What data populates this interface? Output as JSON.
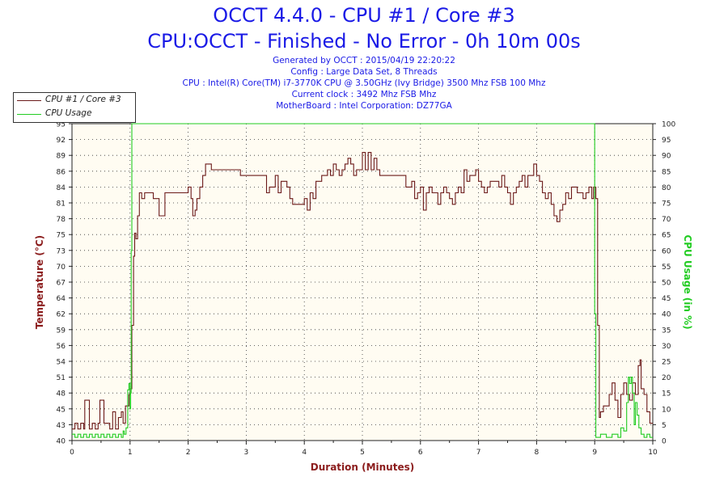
{
  "header": {
    "title1": "OCCT 4.4.0 - CPU #1 / Core #3",
    "title2": "CPU:OCCT - Finished - No Error - 0h 10m 00s",
    "info_lines": [
      "Generated by OCCT : 2015/04/19 22:20:22",
      "Config : Large Data Set, 8 Threads",
      "CPU : Intel(R) Core(TM) i7-3770K CPU @ 3.50GHz (Ivy Bridge) 3500 Mhz FSB 100 Mhz",
      "Current clock : 3492 Mhz FSB  Mhz",
      "MotherBoard : Intel Corporation: DZ77GA"
    ]
  },
  "legend": {
    "items": [
      {
        "label": "CPU #1 / Core #3",
        "color": "#6b1a1a"
      },
      {
        "label": "CPU Usage",
        "color": "#22cc22"
      }
    ]
  },
  "chart_data": {
    "type": "line",
    "title": "OCCT 4.4.0 - CPU #1 / Core #3",
    "xlabel": "Duration (Minutes)",
    "ylabel_left": "Temperature (°C)",
    "ylabel_right": "CPU Usage (in %)",
    "xlim": [
      0,
      10
    ],
    "ylim_left": [
      40,
      95
    ],
    "ylim_right": [
      0,
      100
    ],
    "x_ticks": [
      "0",
      "1",
      "2",
      "3",
      "4",
      "5",
      "6",
      "7",
      "8",
      "9",
      "10"
    ],
    "y_left_ticks": [
      "40",
      "43",
      "45",
      "48",
      "51",
      "54",
      "56",
      "59",
      "62",
      "64",
      "67",
      "70",
      "73",
      "75",
      "78",
      "81",
      "84",
      "86",
      "89",
      "92",
      "95"
    ],
    "y_right_ticks": [
      "0",
      "5",
      "10",
      "15",
      "20",
      "25",
      "30",
      "35",
      "40",
      "45",
      "50",
      "55",
      "60",
      "65",
      "70",
      "75",
      "80",
      "85",
      "90",
      "95",
      "100"
    ],
    "grid": true,
    "legend_position": "top-left",
    "background": "#fffcf2",
    "series": [
      {
        "name": "CPU #1 / Core #3",
        "color": "#6b1a1a",
        "axis": "left",
        "points": [
          [
            0.0,
            42
          ],
          [
            0.05,
            43
          ],
          [
            0.1,
            42
          ],
          [
            0.15,
            43
          ],
          [
            0.2,
            42
          ],
          [
            0.22,
            47
          ],
          [
            0.28,
            47
          ],
          [
            0.3,
            42
          ],
          [
            0.35,
            43
          ],
          [
            0.4,
            42
          ],
          [
            0.45,
            43
          ],
          [
            0.48,
            47
          ],
          [
            0.53,
            47
          ],
          [
            0.55,
            43
          ],
          [
            0.6,
            43
          ],
          [
            0.65,
            42
          ],
          [
            0.7,
            45
          ],
          [
            0.75,
            42
          ],
          [
            0.8,
            44
          ],
          [
            0.85,
            45
          ],
          [
            0.88,
            43
          ],
          [
            0.92,
            46
          ],
          [
            0.96,
            46
          ],
          [
            0.98,
            48
          ],
          [
            1.0,
            49
          ],
          [
            1.03,
            60
          ],
          [
            1.06,
            72
          ],
          [
            1.08,
            76
          ],
          [
            1.1,
            75
          ],
          [
            1.13,
            79
          ],
          [
            1.16,
            83
          ],
          [
            1.2,
            82
          ],
          [
            1.25,
            83
          ],
          [
            1.3,
            83
          ],
          [
            1.35,
            83
          ],
          [
            1.4,
            82
          ],
          [
            1.45,
            82
          ],
          [
            1.5,
            79
          ],
          [
            1.55,
            79
          ],
          [
            1.6,
            83
          ],
          [
            1.7,
            83
          ],
          [
            1.8,
            83
          ],
          [
            1.9,
            83
          ],
          [
            2.0,
            84
          ],
          [
            2.05,
            82
          ],
          [
            2.08,
            79
          ],
          [
            2.12,
            80
          ],
          [
            2.15,
            82
          ],
          [
            2.2,
            84
          ],
          [
            2.25,
            86
          ],
          [
            2.3,
            88
          ],
          [
            2.4,
            87
          ],
          [
            2.5,
            87
          ],
          [
            2.6,
            87
          ],
          [
            2.7,
            87
          ],
          [
            2.8,
            87
          ],
          [
            2.9,
            86
          ],
          [
            3.0,
            86
          ],
          [
            3.1,
            86
          ],
          [
            3.2,
            86
          ],
          [
            3.3,
            86
          ],
          [
            3.35,
            83
          ],
          [
            3.4,
            84
          ],
          [
            3.5,
            86
          ],
          [
            3.55,
            83
          ],
          [
            3.6,
            85
          ],
          [
            3.7,
            84
          ],
          [
            3.75,
            82
          ],
          [
            3.8,
            81
          ],
          [
            3.9,
            81
          ],
          [
            3.95,
            81
          ],
          [
            4.0,
            82
          ],
          [
            4.05,
            80
          ],
          [
            4.1,
            83
          ],
          [
            4.15,
            82
          ],
          [
            4.2,
            85
          ],
          [
            4.3,
            86
          ],
          [
            4.4,
            87
          ],
          [
            4.45,
            86
          ],
          [
            4.5,
            88
          ],
          [
            4.55,
            87
          ],
          [
            4.6,
            86
          ],
          [
            4.65,
            87
          ],
          [
            4.7,
            88
          ],
          [
            4.75,
            89
          ],
          [
            4.8,
            88
          ],
          [
            4.85,
            86
          ],
          [
            4.9,
            87
          ],
          [
            5.0,
            90
          ],
          [
            5.05,
            87
          ],
          [
            5.1,
            90
          ],
          [
            5.15,
            87
          ],
          [
            5.2,
            89
          ],
          [
            5.25,
            87
          ],
          [
            5.3,
            86
          ],
          [
            5.4,
            86
          ],
          [
            5.5,
            86
          ],
          [
            5.6,
            86
          ],
          [
            5.7,
            86
          ],
          [
            5.75,
            84
          ],
          [
            5.8,
            84
          ],
          [
            5.85,
            85
          ],
          [
            5.9,
            82
          ],
          [
            5.95,
            83
          ],
          [
            6.0,
            84
          ],
          [
            6.05,
            80
          ],
          [
            6.1,
            83
          ],
          [
            6.15,
            84
          ],
          [
            6.2,
            83
          ],
          [
            6.25,
            83
          ],
          [
            6.3,
            81
          ],
          [
            6.35,
            83
          ],
          [
            6.4,
            84
          ],
          [
            6.45,
            83
          ],
          [
            6.5,
            82
          ],
          [
            6.55,
            81
          ],
          [
            6.6,
            83
          ],
          [
            6.65,
            84
          ],
          [
            6.7,
            83
          ],
          [
            6.75,
            87
          ],
          [
            6.8,
            85
          ],
          [
            6.85,
            86
          ],
          [
            6.9,
            86
          ],
          [
            6.95,
            87
          ],
          [
            7.0,
            85
          ],
          [
            7.05,
            84
          ],
          [
            7.1,
            83
          ],
          [
            7.15,
            84
          ],
          [
            7.2,
            85
          ],
          [
            7.25,
            85
          ],
          [
            7.3,
            85
          ],
          [
            7.35,
            84
          ],
          [
            7.4,
            86
          ],
          [
            7.45,
            84
          ],
          [
            7.5,
            83
          ],
          [
            7.55,
            81
          ],
          [
            7.6,
            83
          ],
          [
            7.65,
            84
          ],
          [
            7.7,
            85
          ],
          [
            7.75,
            86
          ],
          [
            7.8,
            84
          ],
          [
            7.85,
            86
          ],
          [
            7.9,
            86
          ],
          [
            7.95,
            88
          ],
          [
            8.0,
            86
          ],
          [
            8.05,
            85
          ],
          [
            8.1,
            83
          ],
          [
            8.15,
            82
          ],
          [
            8.2,
            83
          ],
          [
            8.25,
            81
          ],
          [
            8.3,
            79
          ],
          [
            8.35,
            78
          ],
          [
            8.4,
            80
          ],
          [
            8.45,
            81
          ],
          [
            8.5,
            83
          ],
          [
            8.55,
            82
          ],
          [
            8.6,
            84
          ],
          [
            8.65,
            84
          ],
          [
            8.7,
            83
          ],
          [
            8.75,
            83
          ],
          [
            8.8,
            82
          ],
          [
            8.85,
            83
          ],
          [
            8.9,
            84
          ],
          [
            8.95,
            82
          ],
          [
            8.98,
            84
          ],
          [
            9.02,
            82
          ],
          [
            9.05,
            60
          ],
          [
            9.08,
            44
          ],
          [
            9.1,
            45
          ],
          [
            9.15,
            46
          ],
          [
            9.2,
            46
          ],
          [
            9.25,
            48
          ],
          [
            9.3,
            50
          ],
          [
            9.35,
            47
          ],
          [
            9.4,
            44
          ],
          [
            9.45,
            48
          ],
          [
            9.5,
            50
          ],
          [
            9.55,
            48
          ],
          [
            9.6,
            47
          ],
          [
            9.65,
            50
          ],
          [
            9.7,
            48
          ],
          [
            9.75,
            53
          ],
          [
            9.78,
            54
          ],
          [
            9.8,
            49
          ],
          [
            9.85,
            48
          ],
          [
            9.9,
            45
          ],
          [
            9.95,
            43
          ],
          [
            10.0,
            43
          ]
        ]
      },
      {
        "name": "CPU Usage",
        "color": "#22cc22",
        "axis": "right",
        "points": [
          [
            0.0,
            2
          ],
          [
            0.05,
            1
          ],
          [
            0.1,
            2
          ],
          [
            0.15,
            1
          ],
          [
            0.2,
            2
          ],
          [
            0.25,
            1
          ],
          [
            0.3,
            2
          ],
          [
            0.35,
            1
          ],
          [
            0.4,
            2
          ],
          [
            0.45,
            1
          ],
          [
            0.5,
            2
          ],
          [
            0.55,
            1
          ],
          [
            0.6,
            2
          ],
          [
            0.65,
            1
          ],
          [
            0.7,
            2
          ],
          [
            0.75,
            1
          ],
          [
            0.8,
            2
          ],
          [
            0.85,
            1
          ],
          [
            0.88,
            3
          ],
          [
            0.9,
            2
          ],
          [
            0.93,
            4
          ],
          [
            0.96,
            16
          ],
          [
            0.98,
            18
          ],
          [
            1.0,
            10
          ],
          [
            1.01,
            15
          ],
          [
            1.02,
            60
          ],
          [
            1.03,
            100
          ],
          [
            2.0,
            100
          ],
          [
            3.0,
            100
          ],
          [
            4.0,
            100
          ],
          [
            5.0,
            100
          ],
          [
            6.0,
            100
          ],
          [
            7.0,
            100
          ],
          [
            8.0,
            100
          ],
          [
            8.98,
            100
          ],
          [
            9.0,
            40
          ],
          [
            9.02,
            1
          ],
          [
            9.1,
            2
          ],
          [
            9.2,
            1
          ],
          [
            9.3,
            2
          ],
          [
            9.4,
            1
          ],
          [
            9.45,
            4
          ],
          [
            9.5,
            3
          ],
          [
            9.55,
            12
          ],
          [
            9.58,
            20
          ],
          [
            9.6,
            18
          ],
          [
            9.63,
            20
          ],
          [
            9.65,
            15
          ],
          [
            9.68,
            5
          ],
          [
            9.7,
            12
          ],
          [
            9.73,
            8
          ],
          [
            9.76,
            4
          ],
          [
            9.8,
            2
          ],
          [
            9.85,
            1
          ],
          [
            9.9,
            2
          ],
          [
            9.95,
            1
          ],
          [
            10.0,
            1
          ]
        ]
      }
    ]
  }
}
